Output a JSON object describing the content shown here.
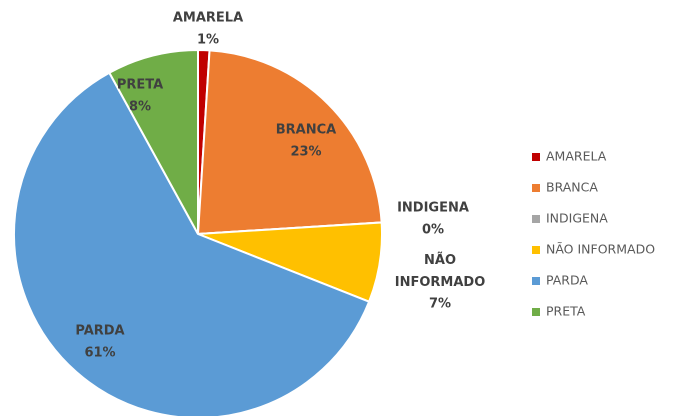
{
  "chart_data": {
    "type": "pie",
    "categories": [
      "AMARELA",
      "BRANCA",
      "INDIGENA",
      "NÃO INFORMADO",
      "PARDA",
      "PRETA"
    ],
    "values": [
      1,
      23,
      0,
      7,
      61,
      8
    ],
    "value_labels": [
      "1%",
      "23%",
      "0%",
      "7%",
      "61%",
      "8%"
    ],
    "colors": [
      "#c00000",
      "#ed7d31",
      "#a5a5a5",
      "#ffc000",
      "#5b9bd5",
      "#70ad47"
    ],
    "legend": "right"
  }
}
